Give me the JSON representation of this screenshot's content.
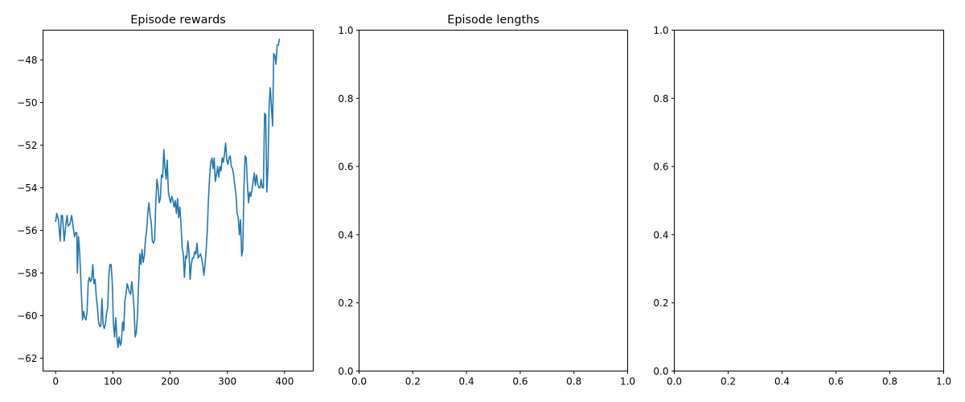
{
  "chart_data": [
    {
      "type": "line",
      "title": "Episode rewards",
      "xlabel": "",
      "ylabel": "",
      "xlim": [
        -22,
        450
      ],
      "ylim": [
        -62.6,
        -46.6
      ],
      "xticks": [
        0,
        100,
        200,
        300,
        400
      ],
      "yticks": [
        -62,
        -60,
        -58,
        -56,
        -54,
        -52,
        -50,
        -48
      ],
      "color": "#1f77b4",
      "series": [
        {
          "points": [
            [
              0,
              -55.6
            ],
            [
              2,
              -55.2
            ],
            [
              5,
              -55.5
            ],
            [
              8,
              -56.5
            ],
            [
              10,
              -55.3
            ],
            [
              12,
              -55.3
            ],
            [
              15,
              -56.5
            ],
            [
              18,
              -55.7
            ],
            [
              20,
              -55.3
            ],
            [
              22,
              -55.8
            ],
            [
              25,
              -55.7
            ],
            [
              28,
              -55.3
            ],
            [
              30,
              -55.7
            ],
            [
              33,
              -56.3
            ],
            [
              35,
              -56.1
            ],
            [
              37,
              -56.1
            ],
            [
              38,
              -58.0
            ],
            [
              40,
              -56.3
            ],
            [
              42,
              -57.0
            ],
            [
              44,
              -58.3
            ],
            [
              46,
              -59.5
            ],
            [
              47,
              -60.2
            ],
            [
              49,
              -59.8
            ],
            [
              51,
              -60.1
            ],
            [
              53,
              -60.2
            ],
            [
              55,
              -59.8
            ],
            [
              57,
              -58.4
            ],
            [
              59,
              -58.2
            ],
            [
              61,
              -58.4
            ],
            [
              63,
              -58.3
            ],
            [
              65,
              -57.6
            ],
            [
              67,
              -58.5
            ],
            [
              69,
              -58.3
            ],
            [
              71,
              -59.1
            ],
            [
              73,
              -59.6
            ],
            [
              75,
              -60.3
            ],
            [
              77,
              -60.5
            ],
            [
              79,
              -60.5
            ],
            [
              81,
              -59.2
            ],
            [
              83,
              -60.4
            ],
            [
              85,
              -60.6
            ],
            [
              87,
              -60.4
            ],
            [
              89,
              -59.9
            ],
            [
              91,
              -59.6
            ],
            [
              93,
              -58.1
            ],
            [
              95,
              -57.6
            ],
            [
              97,
              -57.6
            ],
            [
              99,
              -58.5
            ],
            [
              101,
              -60.4
            ],
            [
              103,
              -61.0
            ],
            [
              105,
              -60.1
            ],
            [
              107,
              -61.0
            ],
            [
              109,
              -61.5
            ],
            [
              111,
              -61.0
            ],
            [
              113,
              -61.4
            ],
            [
              115,
              -61.2
            ],
            [
              117,
              -60.3
            ],
            [
              119,
              -60.7
            ],
            [
              121,
              -59.3
            ],
            [
              123,
              -59.0
            ],
            [
              125,
              -58.5
            ],
            [
              127,
              -58.7
            ],
            [
              129,
              -58.9
            ],
            [
              131,
              -59.0
            ],
            [
              133,
              -58.4
            ],
            [
              135,
              -58.9
            ],
            [
              137,
              -59.7
            ],
            [
              139,
              -61.0
            ],
            [
              141,
              -60.8
            ],
            [
              143,
              -60.0
            ],
            [
              145,
              -58.5
            ],
            [
              147,
              -57.1
            ],
            [
              149,
              -57.6
            ],
            [
              151,
              -56.9
            ],
            [
              153,
              -57.5
            ],
            [
              155,
              -57.2
            ],
            [
              157,
              -56.4
            ],
            [
              159,
              -56.0
            ],
            [
              161,
              -55.2
            ],
            [
              163,
              -54.7
            ],
            [
              165,
              -55.3
            ],
            [
              167,
              -55.6
            ],
            [
              169,
              -56.5
            ],
            [
              171,
              -56.6
            ],
            [
              173,
              -56.4
            ],
            [
              175,
              -54.7
            ],
            [
              177,
              -53.6
            ],
            [
              179,
              -54.0
            ],
            [
              181,
              -54.7
            ],
            [
              183,
              -54.5
            ],
            [
              185,
              -53.4
            ],
            [
              187,
              -53.5
            ],
            [
              189,
              -52.2
            ],
            [
              191,
              -53.0
            ],
            [
              193,
              -53.6
            ],
            [
              195,
              -52.7
            ],
            [
              197,
              -54.2
            ],
            [
              199,
              -54.5
            ],
            [
              201,
              -54.7
            ],
            [
              203,
              -54.4
            ],
            [
              205,
              -54.6
            ],
            [
              207,
              -54.9
            ],
            [
              209,
              -54.6
            ],
            [
              211,
              -55.2
            ],
            [
              213,
              -54.5
            ],
            [
              215,
              -55.4
            ],
            [
              217,
              -54.9
            ],
            [
              219,
              -55.7
            ],
            [
              221,
              -56.8
            ],
            [
              223,
              -57.1
            ],
            [
              225,
              -58.2
            ],
            [
              227,
              -57.2
            ],
            [
              229,
              -57.3
            ],
            [
              231,
              -56.5
            ],
            [
              233,
              -57.0
            ],
            [
              235,
              -58.3
            ],
            [
              237,
              -57.6
            ],
            [
              239,
              -57.3
            ],
            [
              241,
              -57.3
            ],
            [
              243,
              -57.0
            ],
            [
              245,
              -57.1
            ],
            [
              247,
              -56.6
            ],
            [
              249,
              -57.3
            ],
            [
              251,
              -57.2
            ],
            [
              253,
              -57.1
            ],
            [
              255,
              -57.3
            ],
            [
              257,
              -57.6
            ],
            [
              259,
              -58.1
            ],
            [
              261,
              -57.6
            ],
            [
              263,
              -56.9
            ],
            [
              265,
              -56.0
            ],
            [
              267,
              -54.5
            ],
            [
              269,
              -53.5
            ],
            [
              271,
              -52.8
            ],
            [
              273,
              -52.6
            ],
            [
              275,
              -53.1
            ],
            [
              277,
              -52.6
            ],
            [
              279,
              -53.7
            ],
            [
              281,
              -53.4
            ],
            [
              283,
              -53.0
            ],
            [
              285,
              -53.5
            ],
            [
              287,
              -53.0
            ],
            [
              289,
              -53.2
            ],
            [
              291,
              -52.6
            ],
            [
              293,
              -52.8
            ],
            [
              295,
              -52.4
            ],
            [
              297,
              -51.9
            ],
            [
              299,
              -52.7
            ],
            [
              301,
              -52.9
            ],
            [
              303,
              -52.6
            ],
            [
              305,
              -52.5
            ],
            [
              307,
              -53.0
            ],
            [
              309,
              -53.1
            ],
            [
              311,
              -53.4
            ],
            [
              313,
              -53.9
            ],
            [
              315,
              -54.3
            ],
            [
              317,
              -55.2
            ],
            [
              319,
              -55.4
            ],
            [
              321,
              -56.2
            ],
            [
              323,
              -55.5
            ],
            [
              325,
              -57.2
            ],
            [
              327,
              -56.9
            ],
            [
              329,
              -54.0
            ],
            [
              331,
              -52.5
            ],
            [
              333,
              -52.6
            ],
            [
              335,
              -53.8
            ],
            [
              337,
              -54.7
            ],
            [
              339,
              -54.2
            ],
            [
              341,
              -54.4
            ],
            [
              343,
              -54.1
            ],
            [
              345,
              -53.7
            ],
            [
              347,
              -53.3
            ],
            [
              349,
              -53.9
            ],
            [
              351,
              -53.4
            ],
            [
              353,
              -53.8
            ],
            [
              355,
              -54.0
            ],
            [
              357,
              -54.0
            ],
            [
              359,
              -53.6
            ],
            [
              361,
              -54.0
            ],
            [
              363,
              -54.0
            ],
            [
              365,
              -50.5
            ],
            [
              367,
              -50.6
            ],
            [
              369,
              -54.2
            ],
            [
              371,
              -53.0
            ],
            [
              373,
              -50.1
            ],
            [
              375,
              -49.3
            ],
            [
              377,
              -50.2
            ],
            [
              379,
              -51.1
            ],
            [
              381,
              -47.7
            ],
            [
              383,
              -47.8
            ],
            [
              385,
              -48.2
            ],
            [
              387,
              -47.3
            ],
            [
              389,
              -47.3
            ],
            [
              391,
              -47.0
            ]
          ]
        }
      ]
    },
    {
      "type": "line",
      "title": "Episode lengths",
      "xlabel": "",
      "ylabel": "",
      "xlim": [
        0,
        1
      ],
      "ylim": [
        0,
        1
      ],
      "xticks": [
        "0.0",
        "0.2",
        "0.4",
        "0.6",
        "0.8",
        "1.0"
      ],
      "yticks": [
        "0.0",
        "0.2",
        "0.4",
        "0.6",
        "0.8",
        "1.0"
      ],
      "series": []
    },
    {
      "type": "line",
      "title": "",
      "xlabel": "",
      "ylabel": "",
      "xlim": [
        0,
        1
      ],
      "ylim": [
        0,
        1
      ],
      "xticks": [
        "0.0",
        "0.2",
        "0.4",
        "0.6",
        "0.8",
        "1.0"
      ],
      "yticks": [
        "0.0",
        "0.2",
        "0.4",
        "0.6",
        "0.8",
        "1.0"
      ],
      "series": []
    }
  ]
}
